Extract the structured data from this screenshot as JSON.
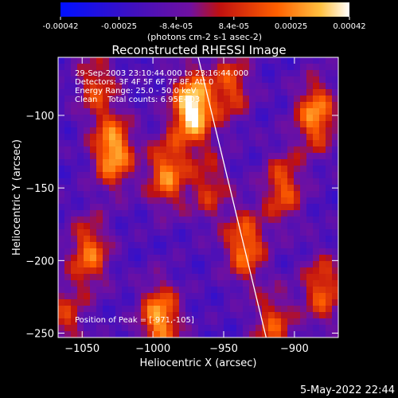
{
  "chart_data": {
    "type": "heatmap",
    "title": "Reconstructed RHESSI Image",
    "xlabel": "Heliocentric X (arcsec)",
    "ylabel": "Heliocentric Y (arcsec)",
    "xlim": [
      -1067,
      -869
    ],
    "ylim": [
      -253,
      -60
    ],
    "x_ticks": [
      -1050,
      -1000,
      -950,
      -900
    ],
    "y_ticks": [
      -250,
      -200,
      -150,
      -100
    ],
    "colorbar": {
      "range": [
        -0.00042,
        0.00042
      ],
      "tick_values": [
        -0.00042,
        -0.00025,
        -8.4e-05,
        8.4e-05,
        0.00025,
        0.00042
      ],
      "tick_labels": [
        "-0.00042",
        "-0.00025",
        "-8.4e-05",
        "8.4e-05",
        "0.00025",
        "0.00042"
      ],
      "unit_label": "(photons cm-2 s-1 asec-2)"
    },
    "annotations": {
      "time_range": "29-Sep-2003 23:10:44.000 to 23:16:44.000",
      "detectors": "Detectors: 3F 4F 5F 6F 7F 8F, Att 0",
      "energy_range": "Energy Range: 25.0 - 50.0 keV",
      "clean_counts": "Clean    Total counts: 6.95E+03",
      "peak": "Position of Peak = [-971,-105]"
    },
    "limb_line": [
      [
        -968,
        -60
      ],
      [
        -920,
        -253
      ]
    ],
    "bright_regions": [
      {
        "x": -972,
        "y": -95,
        "v": 1.0
      },
      {
        "x": -1028,
        "y": -125,
        "v": 0.8
      },
      {
        "x": -990,
        "y": -140,
        "v": 0.65
      },
      {
        "x": -1045,
        "y": -195,
        "v": 0.6
      },
      {
        "x": -995,
        "y": -240,
        "v": 0.75
      },
      {
        "x": -935,
        "y": -190,
        "v": 0.65
      },
      {
        "x": -908,
        "y": -150,
        "v": 0.55
      },
      {
        "x": -885,
        "y": -100,
        "v": 0.7
      },
      {
        "x": -945,
        "y": -80,
        "v": 0.5
      },
      {
        "x": -880,
        "y": -220,
        "v": 0.55
      },
      {
        "x": -1040,
        "y": -80,
        "v": 0.45
      },
      {
        "x": -960,
        "y": -150,
        "v": 0.4
      },
      {
        "x": -1062,
        "y": -240,
        "v": 0.4
      },
      {
        "x": -915,
        "y": -245,
        "v": 0.5
      }
    ]
  },
  "date_stamp": "5-May-2022 22:44",
  "colors": {
    "colormap": [
      "#0000ff",
      "#4000a0",
      "#7a1090",
      "#e02000",
      "#ff9000",
      "#ffffff"
    ],
    "limb": "#ffffff"
  }
}
